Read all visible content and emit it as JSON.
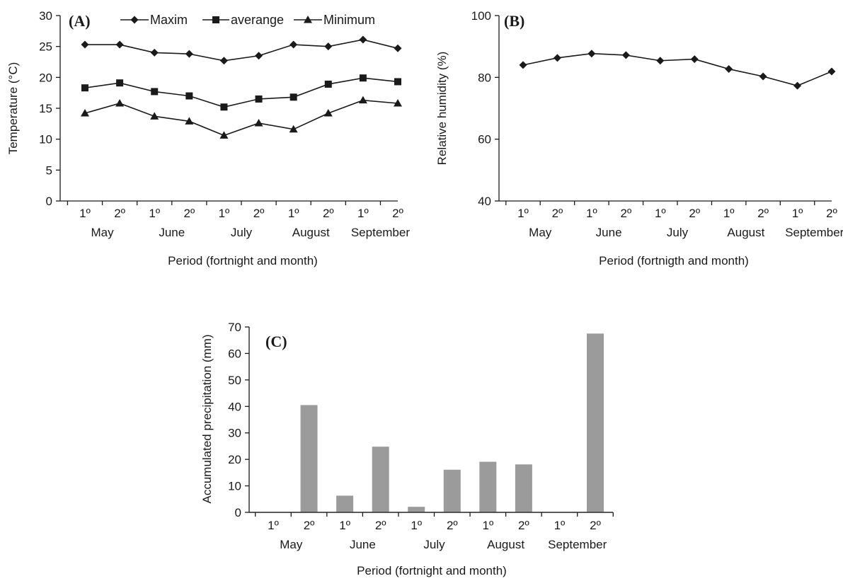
{
  "chart_data": [
    {
      "panel": "(A)",
      "type": "line",
      "ylabel": "Temperature (°C)",
      "xlabel": "Period (fortnight and month)",
      "ylim": [
        0,
        30
      ],
      "yticks": [
        0,
        5,
        10,
        15,
        20,
        25,
        30
      ],
      "x": [
        "1º",
        "2º",
        "1º",
        "2º",
        "1º",
        "2º",
        "1º",
        "2º",
        "1º",
        "2º"
      ],
      "months": [
        "May",
        "June",
        "July",
        "August",
        "September"
      ],
      "legend": "top",
      "grid": false,
      "series": [
        {
          "name": "Maxim",
          "marker": "diamond",
          "values": [
            25.3,
            25.3,
            24.0,
            23.8,
            22.7,
            23.5,
            25.3,
            25.0,
            26.1,
            24.7
          ]
        },
        {
          "name": "averange",
          "marker": "square",
          "values": [
            18.3,
            19.1,
            17.7,
            17.0,
            15.2,
            16.5,
            16.8,
            18.9,
            19.9,
            19.3
          ]
        },
        {
          "name": "Minimum",
          "marker": "triangle",
          "values": [
            14.2,
            15.8,
            13.7,
            12.9,
            10.6,
            12.6,
            11.6,
            14.2,
            16.3,
            15.8
          ]
        }
      ]
    },
    {
      "panel": "(B)",
      "type": "line",
      "ylabel": "Relative humidity (%)",
      "xlabel": "Period (fortnigth and month)",
      "ylim": [
        40,
        100
      ],
      "yticks": [
        40,
        60,
        80,
        100
      ],
      "x": [
        "1º",
        "2º",
        "1º",
        "2º",
        "1º",
        "2º",
        "1º",
        "2º",
        "1º",
        "2º"
      ],
      "months": [
        "May",
        "June",
        "July",
        "August",
        "September"
      ],
      "grid": false,
      "series": [
        {
          "marker": "diamond",
          "values": [
            84.0,
            86.3,
            87.7,
            87.2,
            85.4,
            85.9,
            82.7,
            80.3,
            77.3,
            81.9
          ]
        }
      ]
    },
    {
      "panel": "(C)",
      "type": "bar",
      "ylabel": "Accumulated precipitation (mm)",
      "xlabel": "Period (fortnight and month)",
      "ylim": [
        0,
        70
      ],
      "yticks": [
        0,
        10,
        20,
        30,
        40,
        50,
        60,
        70
      ],
      "x": [
        "1º",
        "2º",
        "1º",
        "2º",
        "1º",
        "2º",
        "1º",
        "2º",
        "1º",
        "2º"
      ],
      "months": [
        "May",
        "June",
        "July",
        "August",
        "September"
      ],
      "grid": false,
      "color": "#9b9b9b",
      "values": [
        0,
        40.5,
        6.3,
        24.8,
        2.1,
        16.1,
        19.1,
        18.1,
        0,
        67.5
      ]
    }
  ]
}
